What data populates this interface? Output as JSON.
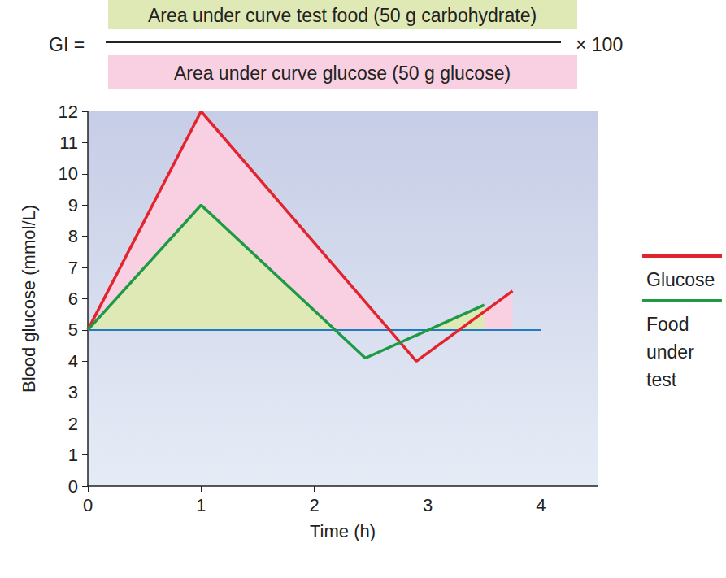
{
  "chart_data": {
    "type": "line",
    "formula": {
      "lhs": "GI =",
      "numerator": "Area under curve test food (50 g carbohydrate)",
      "denominator": "Area under curve glucose (50 g glucose)",
      "rhs": "× 100"
    },
    "x_label": "Time (h)",
    "y_label": "Blood glucose (mmol/L)",
    "xlim": [
      0,
      4.5
    ],
    "xticks": [
      0,
      1,
      2,
      3,
      4
    ],
    "ylim": [
      0,
      12
    ],
    "yticks": [
      0,
      1,
      2,
      3,
      4,
      5,
      6,
      7,
      8,
      9,
      10,
      11,
      12
    ],
    "grid": false,
    "legend": "right",
    "series": [
      {
        "name": "Glucose",
        "color": "#e3232d",
        "x": [
          0,
          1,
          2.9,
          3.75
        ],
        "values": [
          5,
          12,
          4,
          6.25
        ]
      },
      {
        "name": "Food under test",
        "color": "#1e9a46",
        "x": [
          0,
          1,
          2.45,
          3.5
        ],
        "values": [
          5,
          9,
          4.1,
          5.8
        ]
      },
      {
        "color": "#1f7bc2",
        "x": [
          0,
          4
        ],
        "values": [
          5,
          5
        ]
      }
    ]
  }
}
